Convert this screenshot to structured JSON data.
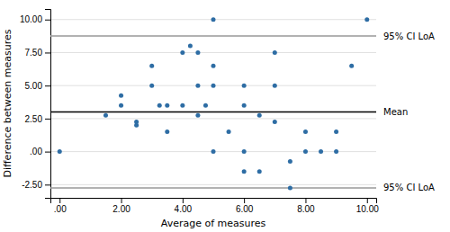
{
  "chart_data": {
    "type": "scatter",
    "x": [
      0.0,
      1.5,
      2.0,
      2.0,
      2.5,
      2.5,
      3.0,
      3.0,
      3.25,
      3.5,
      3.5,
      4.0,
      4.0,
      4.25,
      4.5,
      4.5,
      4.5,
      4.75,
      5.0,
      5.0,
      5.0,
      5.0,
      5.5,
      6.0,
      6.0,
      6.0,
      6.0,
      6.5,
      6.5,
      7.0,
      7.0,
      7.0,
      7.5,
      7.5,
      8.0,
      8.0,
      8.5,
      9.0,
      9.0,
      9.5,
      10.0
    ],
    "values": [
      0.0,
      2.75,
      3.5,
      4.25,
      2.25,
      2.0,
      5.0,
      6.5,
      3.5,
      1.5,
      3.5,
      7.5,
      3.5,
      8.0,
      7.5,
      5.0,
      2.75,
      3.5,
      10.0,
      6.5,
      5.0,
      0.0,
      1.5,
      5.0,
      3.5,
      0.0,
      -1.5,
      2.75,
      -1.5,
      7.5,
      5.0,
      2.25,
      -0.75,
      -2.75,
      1.5,
      0.0,
      0.0,
      1.5,
      0.0,
      6.5,
      10.0
    ],
    "color": "#2e6da4",
    "reference_lines": [
      {
        "value": 8.75,
        "label": "95% CI LoA",
        "color": "#999999"
      },
      {
        "value": 3.0,
        "label": "Mean",
        "color": "#000000"
      },
      {
        "value": -2.75,
        "label": "95% CI LoA",
        "color": "#999999"
      }
    ],
    "xlabel": "Average of measures",
    "ylabel": "Difference between measures",
    "xlim": [
      -0.3,
      10.3
    ],
    "ylim": [
      -3.5,
      10.8
    ],
    "xticks": [
      {
        "value": 0.0,
        "label": ".00"
      },
      {
        "value": 2.0,
        "label": "2.00"
      },
      {
        "value": 4.0,
        "label": "4.00"
      },
      {
        "value": 6.0,
        "label": "6.00"
      },
      {
        "value": 8.0,
        "label": "8.00"
      },
      {
        "value": 10.0,
        "label": "10.00"
      }
    ],
    "yticks": [
      {
        "value": -2.5,
        "label": "-2.50"
      },
      {
        "value": 0.0,
        "label": ".00"
      },
      {
        "value": 2.5,
        "label": "2.50"
      },
      {
        "value": 5.0,
        "label": "5.00"
      },
      {
        "value": 7.5,
        "label": "7.50"
      },
      {
        "value": 10.0,
        "label": "10.00"
      }
    ],
    "grid": "y"
  }
}
